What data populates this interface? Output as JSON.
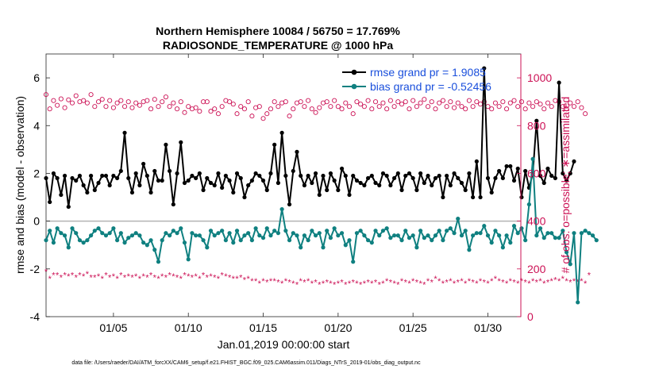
{
  "chart_data": {
    "type": "line",
    "title": "Northern Hemisphere 10084 / 56750 = 17.769%",
    "subtitle": "RADIOSONDE_TEMPERATURE @ 1000 hPa",
    "xlabel": "Jan.01,2019 00:00:00 start",
    "ylabel": "rmse and bias (model - observation)",
    "y2label": "# of obs: o=possible; ∗=assimilated",
    "footer": "data file: /Users/raeder/DAI/ATM_forcXX/CAM6_setup/f.e21.FHIST_BGC.f09_025.CAM6assim.011/Diags_NTrS_2019-01/obs_diag_output.nc",
    "xlim": [
      0.5,
      32.2
    ],
    "ylim": [
      -4,
      7
    ],
    "y2lim": [
      0,
      1100
    ],
    "x_ticks": [
      5,
      10,
      15,
      20,
      25,
      30
    ],
    "x_tick_labels": [
      "01/05",
      "01/10",
      "01/15",
      "01/20",
      "01/25",
      "01/30"
    ],
    "y_ticks": [
      -4,
      -2,
      0,
      2,
      4,
      6
    ],
    "y_tick_labels": [
      "-4",
      "-2",
      "0",
      "2",
      "4",
      "6"
    ],
    "y2_ticks": [
      0,
      200,
      400,
      600,
      800,
      1000
    ],
    "y2_tick_labels": [
      "0",
      "200",
      "400",
      "600",
      "800",
      "1000"
    ],
    "legend": [
      "rmse grand pr = 1.9085",
      "bias grand pr = -0.52456"
    ],
    "colors": {
      "rmse": "#000000",
      "bias": "#0f8080",
      "obs": "#cc1155",
      "zero": "#b3b3b3",
      "legend_text": "#1a4fdc"
    },
    "x_start": 0.5,
    "x_step": 0.25,
    "series": [
      {
        "name": "rmse",
        "axis": "left",
        "values": [
          1.8,
          0.8,
          2.0,
          1.8,
          1.1,
          1.9,
          0.6,
          1.8,
          1.7,
          1.9,
          1.5,
          1.2,
          1.9,
          1.3,
          1.6,
          1.9,
          1.9,
          1.5,
          1.9,
          1.8,
          2.1,
          3.7,
          1.8,
          1.2,
          2.0,
          1.5,
          2.4,
          1.9,
          1.2,
          2.1,
          1.7,
          1.7,
          3.2,
          2.1,
          0.7,
          2.0,
          3.3,
          1.6,
          1.7,
          1.9,
          1.8,
          2.0,
          1.3,
          1.8,
          1.6,
          1.5,
          2.0,
          1.4,
          1.9,
          1.7,
          1.2,
          2.0,
          1.8,
          1.0,
          1.5,
          1.7,
          2.0,
          1.9,
          1.7,
          1.3,
          2.0,
          3.2,
          1.6,
          3.7,
          1.9,
          0.7,
          2.1,
          2.9,
          1.9,
          1.5,
          1.9,
          1.6,
          2.0,
          1.1,
          1.9,
          1.3,
          2.0,
          1.7,
          1.3,
          2.2,
          1.9,
          1.1,
          1.9,
          1.7,
          1.6,
          1.5,
          1.8,
          1.9,
          1.6,
          1.5,
          2.0,
          1.9,
          1.5,
          1.8,
          2.0,
          1.3,
          1.9,
          2.0,
          1.8,
          1.3,
          2.0,
          1.6,
          1.9,
          1.5,
          1.8,
          1.9,
          1.0,
          1.9,
          1.5,
          2.0,
          1.8,
          1.6,
          1.3,
          2.0,
          1.0,
          2.5,
          1.0,
          6.4,
          1.8,
          1.2,
          1.8,
          2.1,
          1.8,
          2.3,
          2.3,
          1.7,
          2.2,
          1.0,
          2.1,
          1.4,
          2.0,
          4.2,
          1.9,
          1.6,
          2.2,
          1.9,
          1.8,
          5.8,
          2.0,
          1.7,
          2.0,
          2.5
        ]
      },
      {
        "name": "bias",
        "axis": "left",
        "values": [
          -0.8,
          -0.4,
          -0.9,
          -0.3,
          -0.5,
          -0.6,
          -1.1,
          -0.3,
          -0.5,
          -0.8,
          -0.9,
          -0.8,
          -0.6,
          -0.4,
          -0.3,
          -0.5,
          -0.6,
          -0.5,
          -0.3,
          -0.8,
          -0.5,
          -0.9,
          -0.7,
          -0.6,
          -0.5,
          -0.6,
          -0.9,
          -1.0,
          -0.8,
          -1.2,
          -1.7,
          -0.8,
          -0.5,
          -0.6,
          -0.4,
          -0.5,
          -0.3,
          -0.9,
          -1.6,
          -0.5,
          -0.6,
          -0.6,
          -0.8,
          -1.1,
          -0.4,
          -0.6,
          -0.5,
          -0.4,
          -0.8,
          -0.5,
          -0.9,
          -0.4,
          -0.8,
          -0.6,
          -0.5,
          -0.8,
          -0.3,
          -0.6,
          -0.7,
          -0.3,
          -0.6,
          -0.4,
          -0.5,
          0.5,
          -0.4,
          -0.8,
          -0.5,
          -0.6,
          -1.1,
          -0.6,
          -0.8,
          -0.4,
          -0.6,
          -0.5,
          -1.1,
          -0.4,
          -0.7,
          -0.3,
          -0.6,
          -0.5,
          -1.0,
          -0.8,
          -1.7,
          -0.5,
          -0.4,
          -0.6,
          -0.8,
          -0.9,
          -0.4,
          -0.6,
          -0.4,
          -0.3,
          -0.7,
          -0.6,
          -0.6,
          -0.8,
          -0.4,
          -0.7,
          -0.6,
          -1.1,
          -0.4,
          -0.7,
          -0.6,
          -0.8,
          -0.6,
          -0.4,
          -0.8,
          -0.4,
          -0.3,
          -0.5,
          0.1,
          -0.6,
          -0.4,
          -1.2,
          -0.6,
          -0.5,
          -0.5,
          -0.2,
          -0.6,
          -0.9,
          -0.4,
          -0.6,
          -1.1,
          -0.6,
          -0.9,
          -0.2,
          -0.5,
          -0.3,
          -0.8,
          0.7,
          2.6,
          -0.6,
          -0.3,
          -0.7,
          -0.5,
          -0.5,
          -0.7,
          -0.7,
          -0.4,
          -1.3,
          -1.8,
          -0.5,
          -3.4,
          -0.5,
          -0.4,
          -0.5,
          -0.6,
          -0.8
        ]
      },
      {
        "name": "possible",
        "axis": "right",
        "marker": "o",
        "values": [
          930,
          870,
          905,
          885,
          912,
          875,
          908,
          895,
          925,
          900,
          905,
          895,
          930,
          880,
          900,
          910,
          880,
          905,
          875,
          895,
          905,
          880,
          900,
          875,
          895,
          885,
          900,
          905,
          870,
          910,
          880,
          900,
          920,
          880,
          895,
          870,
          900,
          855,
          880,
          870,
          875,
          860,
          900,
          900,
          860,
          870,
          850,
          880,
          905,
          900,
          890,
          850,
          880,
          870,
          900,
          840,
          875,
          880,
          830,
          850,
          870,
          900,
          880,
          895,
          900,
          840,
          870,
          895,
          900,
          880,
          905,
          870,
          855,
          875,
          895,
          900,
          880,
          905,
          880,
          870,
          895,
          880,
          850,
          900,
          890,
          880,
          905,
          870,
          900,
          880,
          895,
          870,
          905,
          880,
          900,
          890,
          900,
          870,
          905,
          880,
          895,
          910,
          880,
          900,
          870,
          895,
          905,
          880,
          900,
          875,
          895,
          880,
          870,
          905,
          880,
          900,
          890,
          900,
          880,
          870,
          895,
          880,
          900,
          870,
          895,
          905,
          880,
          900,
          870,
          895,
          880,
          900,
          890,
          870,
          895,
          880,
          905,
          900,
          880,
          870,
          895,
          880,
          900,
          875,
          850
        ]
      },
      {
        "name": "assimilated",
        "axis": "right",
        "marker": "*",
        "values": [
          190,
          160,
          175,
          175,
          165,
          175,
          170,
          175,
          165,
          175,
          170,
          180,
          165,
          165,
          170,
          160,
          175,
          165,
          170,
          160,
          175,
          165,
          170,
          165,
          170,
          160,
          170,
          165,
          175,
          165,
          160,
          170,
          165,
          175,
          170,
          165,
          160,
          175,
          170,
          165,
          170,
          160,
          175,
          165,
          170,
          165,
          160,
          175,
          170,
          165,
          160,
          160,
          165,
          155,
          160,
          150,
          150,
          140,
          150,
          145,
          150,
          150,
          145,
          140,
          150,
          145,
          140,
          135,
          150,
          145,
          150,
          140,
          145,
          135,
          140,
          145,
          140,
          135,
          140,
          145,
          135,
          140,
          145,
          140,
          135,
          140,
          145,
          140,
          145,
          135,
          140,
          150,
          145,
          140,
          135,
          150,
          145,
          140,
          150,
          145,
          140,
          135,
          150,
          145,
          160,
          150,
          140,
          145,
          150,
          140,
          145,
          150,
          140,
          150,
          145,
          140,
          150,
          145,
          140,
          150,
          160,
          150,
          145,
          140,
          150,
          145,
          140,
          150,
          145,
          140,
          150,
          145,
          150,
          140,
          145,
          150,
          155,
          150,
          160,
          150,
          145,
          150,
          145,
          150,
          140,
          175
        ]
      }
    ]
  }
}
